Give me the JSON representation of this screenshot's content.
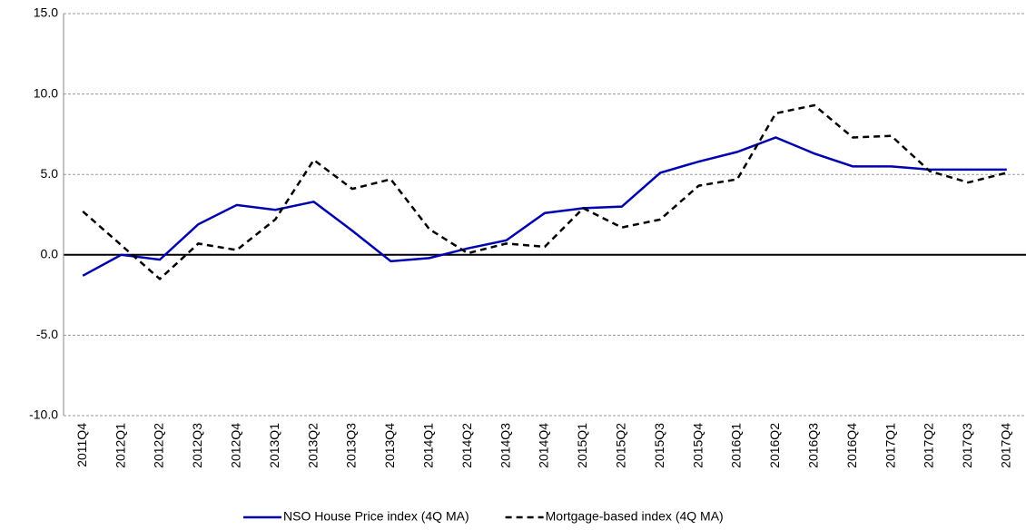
{
  "chart_data": {
    "type": "line",
    "categories": [
      "2011Q4",
      "2012Q1",
      "2012Q2",
      "2012Q3",
      "2012Q4",
      "2013Q1",
      "2013Q2",
      "2013Q3",
      "2013Q4",
      "2014Q1",
      "2014Q2",
      "2014Q3",
      "2014Q4",
      "2015Q1",
      "2015Q2",
      "2015Q3",
      "2015Q4",
      "2016Q1",
      "2016Q2",
      "2016Q3",
      "2016Q4",
      "2017Q1",
      "2017Q2",
      "2017Q3",
      "2017Q4"
    ],
    "series": [
      {
        "name": "NSO House Price index (4Q MA)",
        "color": "#0000b0",
        "line_style": "solid",
        "values": [
          -1.3,
          0.0,
          -0.3,
          1.9,
          3.1,
          2.8,
          3.3,
          1.5,
          -0.4,
          -0.2,
          0.4,
          0.9,
          2.6,
          2.9,
          3.0,
          5.1,
          5.8,
          6.4,
          7.3,
          6.3,
          5.5,
          5.5,
          5.3,
          5.3,
          5.3
        ]
      },
      {
        "name": "Mortgage-based index (4Q MA)",
        "color": "#000000",
        "line_style": "dashed",
        "values": [
          2.7,
          0.6,
          -1.5,
          0.7,
          0.3,
          2.2,
          5.9,
          4.1,
          4.7,
          1.6,
          0.1,
          0.7,
          0.5,
          2.9,
          1.7,
          2.2,
          4.3,
          4.7,
          8.8,
          9.3,
          7.3,
          7.4,
          5.2,
          4.5,
          5.1
        ]
      }
    ],
    "ylim": [
      -10,
      15
    ],
    "yticks": [
      {
        "value": -10,
        "label": "-10.0"
      },
      {
        "value": -5,
        "label": "-5.0"
      },
      {
        "value": 0,
        "label": "0.0"
      },
      {
        "value": 5,
        "label": "5.0"
      },
      {
        "value": 10,
        "label": "10.0"
      },
      {
        "value": 15,
        "label": "15.0"
      }
    ],
    "grid": true,
    "legend": "bottom"
  }
}
